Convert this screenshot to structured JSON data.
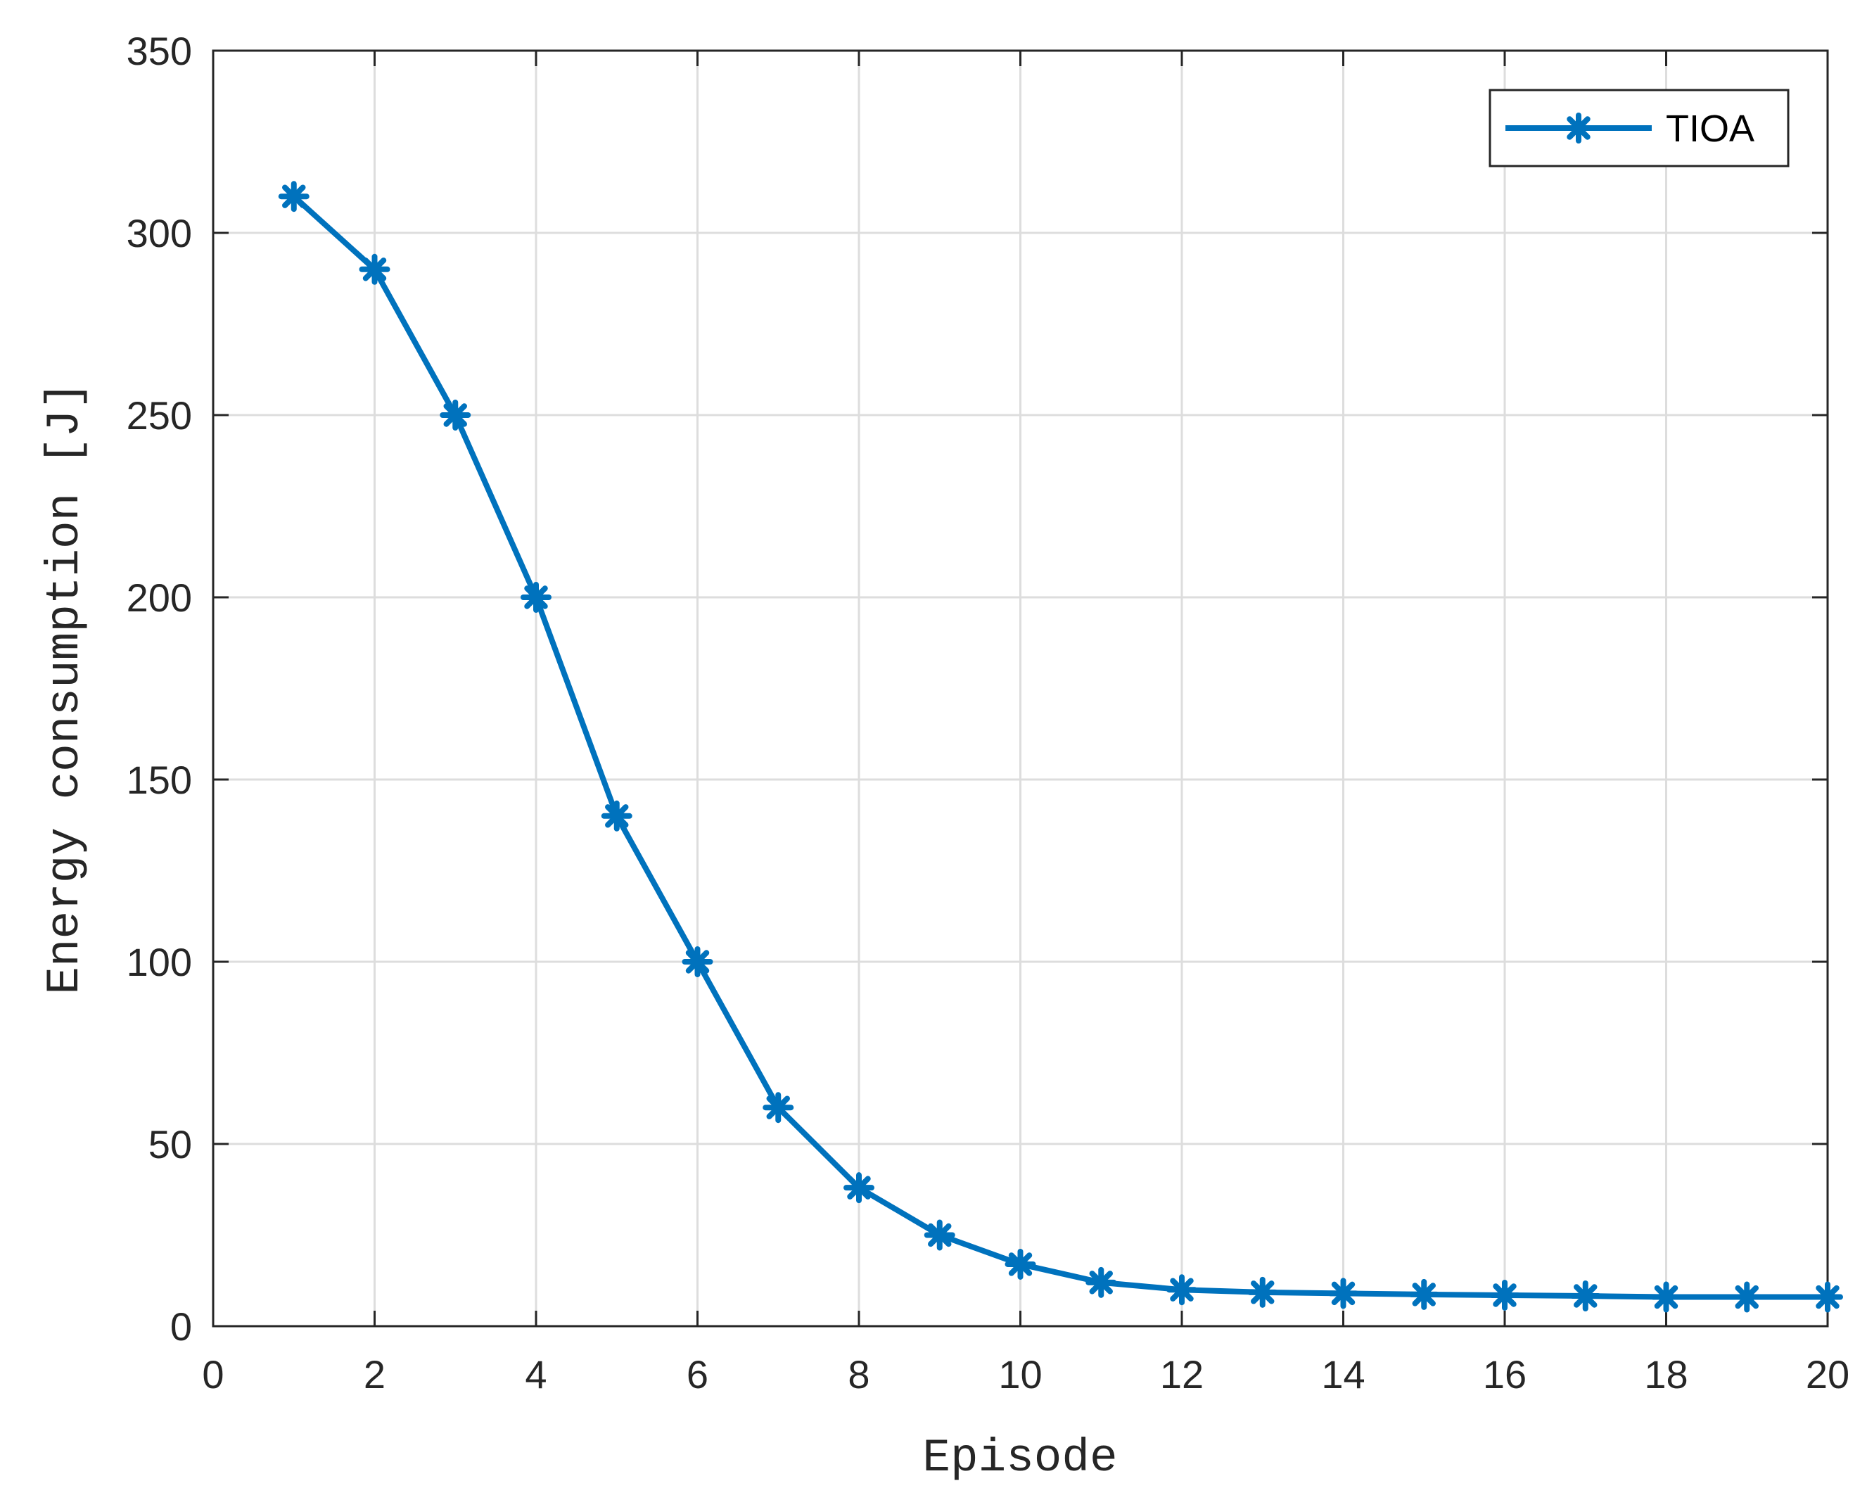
{
  "chart_data": {
    "type": "line",
    "title": "",
    "xlabel": "Episode",
    "ylabel": "Energy consumption [J]",
    "xlim": [
      0,
      20
    ],
    "ylim": [
      0,
      350
    ],
    "x_ticks": [
      0,
      2,
      4,
      6,
      8,
      10,
      12,
      14,
      16,
      18,
      20
    ],
    "y_ticks": [
      0,
      50,
      100,
      150,
      200,
      250,
      300,
      350
    ],
    "grid": true,
    "legend_position": "top-right",
    "series": [
      {
        "name": "TIOA",
        "color": "#0072BD",
        "marker": "asterisk",
        "x": [
          1,
          2,
          3,
          4,
          5,
          6,
          7,
          8,
          9,
          10,
          11,
          12,
          13,
          14,
          15,
          16,
          17,
          18,
          19,
          20
        ],
        "y": [
          310,
          290,
          250,
          200,
          140,
          100,
          60,
          38,
          25,
          17,
          12,
          10,
          9.3,
          9,
          8.7,
          8.5,
          8.3,
          8,
          8,
          8
        ]
      }
    ]
  }
}
